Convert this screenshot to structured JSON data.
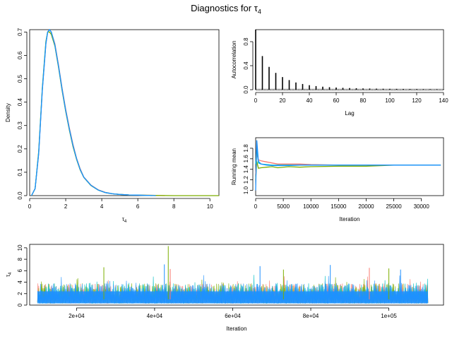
{
  "title": {
    "main": "Diagnostics for ",
    "symbol": "τ",
    "sub": "4"
  },
  "colors": {
    "red": "#F8766D",
    "green": "#7CAE00",
    "teal": "#00BFC4",
    "blue": "#1E90FF",
    "black": "#000000",
    "band": "#BEBEBE"
  },
  "chart_data": [
    {
      "panel": "density",
      "type": "line",
      "title": "",
      "xlabel": {
        "symbol": "τ",
        "sub": "4"
      },
      "ylabel": "Density",
      "xlim": [
        0,
        10.5
      ],
      "ylim": [
        0,
        0.71
      ],
      "xticks": [
        "0",
        "2",
        "4",
        "6",
        "8",
        "10"
      ],
      "xtick_values": [
        0,
        2,
        4,
        6,
        8,
        10
      ],
      "yticks": [
        "0.0",
        "0.1",
        "0.2",
        "0.3",
        "0.4",
        "0.5",
        "0.6",
        "0.7"
      ],
      "ytick_values": [
        0,
        0.1,
        0.2,
        0.3,
        0.4,
        0.5,
        0.6,
        0.7
      ],
      "series": [
        {
          "color": "red",
          "x": [
            0.1,
            0.3,
            0.5,
            0.7,
            0.9,
            1.0,
            1.1,
            1.2,
            1.4,
            1.6,
            1.8,
            2.0,
            2.2,
            2.4,
            2.6,
            2.8,
            3.0,
            3.4,
            3.8,
            4.2,
            4.6,
            5.0,
            5.5,
            6.0,
            7.0,
            7.5
          ],
          "y": [
            0.0,
            0.03,
            0.18,
            0.45,
            0.65,
            0.7,
            0.71,
            0.7,
            0.65,
            0.56,
            0.46,
            0.37,
            0.29,
            0.22,
            0.16,
            0.115,
            0.08,
            0.045,
            0.025,
            0.014,
            0.008,
            0.005,
            0.003,
            0.002,
            0.001,
            0.0
          ]
        },
        {
          "color": "green",
          "x": [
            0.1,
            0.3,
            0.5,
            0.7,
            0.9,
            1.0,
            1.1,
            1.2,
            1.4,
            1.6,
            1.8,
            2.0,
            2.2,
            2.4,
            2.6,
            2.8,
            3.0,
            3.4,
            3.8,
            4.2,
            4.6,
            5.0,
            5.5,
            6.0,
            7.0,
            8.0,
            9.0,
            10.5
          ],
          "y": [
            0.0,
            0.03,
            0.19,
            0.46,
            0.66,
            0.7,
            0.7,
            0.69,
            0.64,
            0.55,
            0.45,
            0.36,
            0.28,
            0.21,
            0.155,
            0.11,
            0.078,
            0.043,
            0.024,
            0.013,
            0.008,
            0.005,
            0.003,
            0.002,
            0.001,
            0.0,
            0.0,
            0.0
          ]
        },
        {
          "color": "teal",
          "x": [
            0.1,
            0.3,
            0.5,
            0.7,
            0.9,
            1.0,
            1.1,
            1.2,
            1.4,
            1.6,
            1.8,
            2.0,
            2.2,
            2.4,
            2.6,
            2.8,
            3.0,
            3.4,
            3.8,
            4.2,
            4.6,
            5.0,
            5.5,
            6.0,
            6.8
          ],
          "y": [
            0.0,
            0.03,
            0.185,
            0.455,
            0.655,
            0.7,
            0.71,
            0.7,
            0.645,
            0.555,
            0.455,
            0.365,
            0.285,
            0.215,
            0.158,
            0.112,
            0.079,
            0.044,
            0.024,
            0.013,
            0.008,
            0.005,
            0.003,
            0.002,
            0.0
          ]
        },
        {
          "color": "blue",
          "x": [
            0.1,
            0.3,
            0.5,
            0.7,
            0.9,
            1.0,
            1.1,
            1.2,
            1.4,
            1.6,
            1.8,
            2.0,
            2.2,
            2.4,
            2.6,
            2.8,
            3.0,
            3.4,
            3.8,
            4.2,
            4.6,
            5.0,
            5.5,
            6.0,
            7.0
          ],
          "y": [
            0.0,
            0.03,
            0.18,
            0.45,
            0.65,
            0.7,
            0.71,
            0.7,
            0.645,
            0.555,
            0.455,
            0.365,
            0.285,
            0.215,
            0.158,
            0.112,
            0.079,
            0.044,
            0.024,
            0.013,
            0.008,
            0.005,
            0.003,
            0.002,
            0.0
          ]
        }
      ]
    },
    {
      "panel": "autocorrelation",
      "type": "bar",
      "title": "",
      "xlabel": "Lag",
      "ylabel": "Autocorrelation",
      "xlim": [
        0,
        140
      ],
      "ylim": [
        0,
        1
      ],
      "xticks": [
        "0",
        "20",
        "40",
        "60",
        "80",
        "100",
        "120",
        "140"
      ],
      "xtick_values": [
        0,
        20,
        40,
        60,
        80,
        100,
        120,
        140
      ],
      "yticks": [
        "0.0",
        "0.4",
        "0.8"
      ],
      "ytick_values": [
        0,
        0.4,
        0.8
      ],
      "lags": [
        0,
        5,
        10,
        15,
        20,
        25,
        30,
        35,
        40,
        45,
        50,
        55,
        60,
        65,
        70,
        75,
        80,
        85,
        90,
        95,
        100,
        105,
        110,
        115,
        120,
        125,
        130,
        135,
        140
      ],
      "values": [
        1.0,
        0.56,
        0.38,
        0.28,
        0.21,
        0.16,
        0.12,
        0.095,
        0.075,
        0.06,
        0.05,
        0.042,
        0.036,
        0.031,
        0.027,
        0.024,
        0.021,
        0.019,
        0.017,
        0.015,
        0.014,
        0.013,
        0.012,
        0.011,
        0.01,
        0.009,
        0.009,
        0.008,
        0.008
      ],
      "band": 0.02
    },
    {
      "panel": "running-mean",
      "type": "line",
      "title": "",
      "xlabel": "Iteration",
      "ylabel": "Running mean",
      "xlim": [
        0,
        34000
      ],
      "ylim": [
        0.9,
        2.0
      ],
      "xticks": [
        "0",
        "5000",
        "10000",
        "15000",
        "20000",
        "25000",
        "30000"
      ],
      "xtick_values": [
        0,
        5000,
        10000,
        15000,
        20000,
        25000,
        30000
      ],
      "yticks": [
        "1.0",
        "1.2",
        "1.4",
        "1.6",
        "1.8"
      ],
      "ytick_values": [
        1.0,
        1.2,
        1.4,
        1.6,
        1.8
      ],
      "series": [
        {
          "color": "red",
          "x": [
            0,
            200,
            500,
            1000,
            2000,
            3000,
            4000,
            6000,
            8000,
            10000,
            15000,
            20000,
            25000,
            30000,
            33500
          ],
          "y": [
            1.3,
            1.7,
            1.58,
            1.56,
            1.54,
            1.52,
            1.5,
            1.5,
            1.5,
            1.49,
            1.48,
            1.48,
            1.48,
            1.48,
            1.48
          ]
        },
        {
          "color": "green",
          "x": [
            0,
            200,
            500,
            1000,
            2000,
            3000,
            4000,
            6000,
            8000,
            10000,
            15000,
            20000,
            25000,
            30000,
            33500
          ],
          "y": [
            1.2,
            1.55,
            1.42,
            1.43,
            1.44,
            1.45,
            1.43,
            1.45,
            1.44,
            1.45,
            1.46,
            1.46,
            1.48,
            1.48,
            1.48
          ]
        },
        {
          "color": "teal",
          "x": [
            0,
            200,
            500,
            1000,
            2000,
            3000,
            4000,
            6000,
            8000,
            10000,
            15000,
            20000,
            25000,
            30000,
            33500
          ],
          "y": [
            1.5,
            1.8,
            1.52,
            1.5,
            1.49,
            1.48,
            1.48,
            1.48,
            1.48,
            1.48,
            1.48,
            1.48,
            1.48,
            1.48,
            1.48
          ]
        },
        {
          "color": "blue",
          "x": [
            0,
            200,
            500,
            1000,
            2000,
            3000,
            4000,
            6000,
            8000,
            10000,
            15000,
            20000,
            25000,
            30000,
            33500
          ],
          "y": [
            1.0,
            1.95,
            1.55,
            1.5,
            1.48,
            1.47,
            1.47,
            1.47,
            1.48,
            1.48,
            1.48,
            1.48,
            1.48,
            1.48,
            1.48
          ]
        }
      ]
    },
    {
      "panel": "trace",
      "type": "line",
      "title": "",
      "xlabel": "Iteration",
      "ylabel": {
        "symbol": "τ",
        "sub": "4"
      },
      "xlim": [
        8000,
        114000
      ],
      "ylim": [
        0,
        10.6
      ],
      "xticks": [
        "2e+04",
        "4e+04",
        "6e+04",
        "8e+04",
        "1e+05"
      ],
      "xtick_values": [
        20000,
        40000,
        60000,
        80000,
        100000
      ],
      "yticks": [
        "0",
        "2",
        "4",
        "6",
        "8",
        "10"
      ],
      "ytick_values": [
        0,
        2,
        4,
        6,
        8,
        10
      ],
      "iteration_range": [
        10000,
        110000
      ],
      "series_order": [
        "red",
        "green",
        "teal",
        "blue"
      ],
      "spikes": [
        {
          "color": "green",
          "x": 43500,
          "y": 10.3
        },
        {
          "color": "blue",
          "x": 42500,
          "y": 7.1
        },
        {
          "color": "blue",
          "x": 85000,
          "y": 7.0
        },
        {
          "color": "green",
          "x": 27000,
          "y": 6.6
        },
        {
          "color": "red",
          "x": 44000,
          "y": 6.3
        },
        {
          "color": "green",
          "x": 73000,
          "y": 6.2
        },
        {
          "color": "blue",
          "x": 67000,
          "y": 6.8
        },
        {
          "color": "red",
          "x": 95000,
          "y": 6.5
        },
        {
          "color": "green",
          "x": 100000,
          "y": 6.4
        },
        {
          "color": "blue",
          "x": 103000,
          "y": 6.2
        }
      ]
    }
  ]
}
